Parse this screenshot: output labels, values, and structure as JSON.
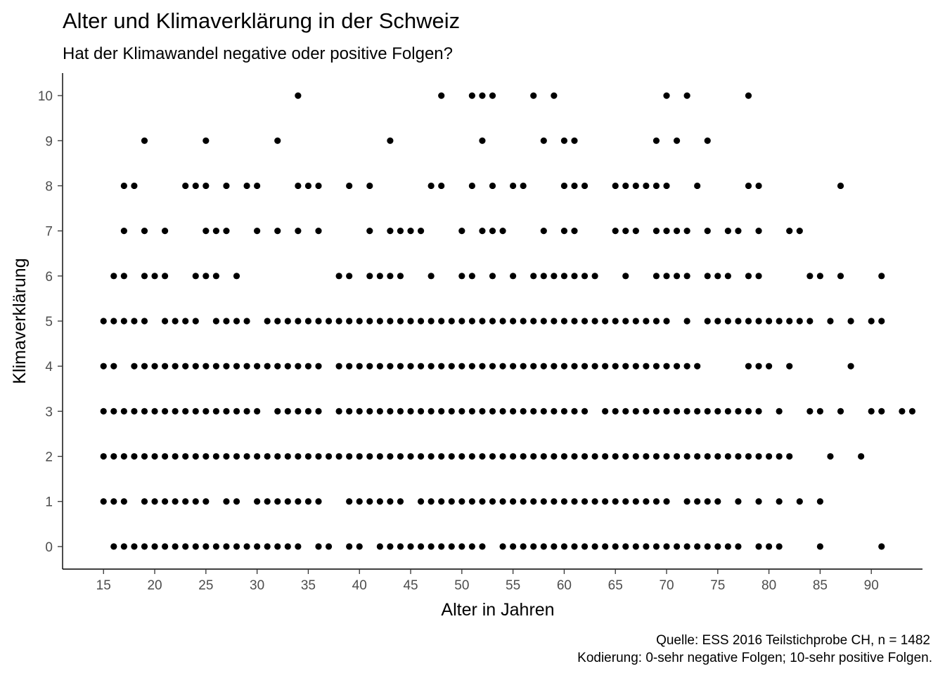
{
  "chart_data": {
    "type": "scatter",
    "title": "Alter und Klimaverklärung in der Schweiz",
    "subtitle": "Hat der Klimawandel negative oder positive Folgen?",
    "xlabel": "Alter in Jahren",
    "ylabel": "Klimaverklärung",
    "caption_lines": [
      "Quelle: ESS 2016 Teilstichprobe CH, n = 1482",
      "Kodierung: 0-sehr negative Folgen; 10-sehr positive Folgen."
    ],
    "xlim": [
      11,
      95
    ],
    "ylim": [
      -0.5,
      10.5
    ],
    "x_ticks": [
      15,
      20,
      25,
      30,
      35,
      40,
      45,
      50,
      55,
      60,
      65,
      70,
      75,
      80,
      85,
      90
    ],
    "y_ticks": [
      0,
      1,
      2,
      3,
      4,
      5,
      6,
      7,
      8,
      9,
      10
    ],
    "grid": false,
    "point_color": "#000000",
    "rows": [
      {
        "y": 10,
        "x": [
          34,
          48,
          51,
          52,
          53,
          57,
          59,
          70,
          72,
          78
        ]
      },
      {
        "y": 9,
        "x": [
          19,
          25,
          32,
          43,
          52,
          58,
          60,
          61,
          69,
          71,
          74
        ]
      },
      {
        "y": 8,
        "x": [
          17,
          18,
          23,
          24,
          25,
          27,
          29,
          30,
          34,
          35,
          36,
          39,
          41,
          47,
          48,
          51,
          53,
          55,
          56,
          60,
          61,
          62,
          65,
          66,
          67,
          68,
          69,
          70,
          73,
          78,
          79,
          87
        ]
      },
      {
        "y": 7,
        "x": [
          17,
          19,
          21,
          25,
          26,
          27,
          30,
          32,
          34,
          36,
          41,
          43,
          44,
          45,
          46,
          50,
          52,
          53,
          54,
          58,
          60,
          61,
          65,
          66,
          67,
          69,
          70,
          71,
          72,
          74,
          76,
          77,
          79,
          82,
          83
        ]
      },
      {
        "y": 6,
        "x": [
          16,
          17,
          19,
          20,
          21,
          24,
          25,
          26,
          28,
          38,
          39,
          41,
          42,
          43,
          44,
          47,
          50,
          51,
          53,
          55,
          57,
          58,
          59,
          60,
          61,
          62,
          63,
          66,
          69,
          70,
          71,
          72,
          74,
          75,
          76,
          78,
          79,
          84,
          85,
          87,
          91
        ]
      },
      {
        "y": 5,
        "x": [
          15,
          16,
          17,
          18,
          19,
          21,
          22,
          23,
          24,
          26,
          27,
          28,
          29,
          31,
          32,
          33,
          34,
          35,
          36,
          37,
          38,
          39,
          40,
          41,
          42,
          43,
          44,
          45,
          46,
          47,
          48,
          49,
          50,
          51,
          52,
          53,
          54,
          55,
          56,
          57,
          58,
          59,
          60,
          61,
          62,
          63,
          64,
          65,
          66,
          67,
          68,
          69,
          70,
          72,
          74,
          75,
          76,
          77,
          78,
          79,
          80,
          81,
          82,
          83,
          84,
          86,
          88,
          90,
          91
        ]
      },
      {
        "y": 4,
        "x": [
          15,
          16,
          18,
          19,
          20,
          21,
          22,
          23,
          24,
          25,
          26,
          27,
          28,
          29,
          30,
          31,
          32,
          33,
          34,
          35,
          36,
          38,
          39,
          40,
          41,
          42,
          43,
          44,
          45,
          46,
          47,
          48,
          49,
          50,
          51,
          52,
          53,
          54,
          55,
          56,
          57,
          58,
          59,
          60,
          61,
          62,
          63,
          64,
          65,
          66,
          67,
          68,
          69,
          70,
          71,
          72,
          73,
          78,
          79,
          80,
          82,
          88
        ]
      },
      {
        "y": 3,
        "x": [
          15,
          16,
          17,
          18,
          19,
          20,
          21,
          22,
          23,
          24,
          25,
          26,
          27,
          28,
          29,
          30,
          32,
          33,
          34,
          35,
          36,
          38,
          39,
          40,
          41,
          42,
          43,
          44,
          45,
          46,
          47,
          48,
          49,
          50,
          51,
          52,
          53,
          54,
          55,
          56,
          57,
          58,
          59,
          60,
          61,
          62,
          64,
          65,
          66,
          67,
          68,
          69,
          70,
          71,
          72,
          73,
          74,
          75,
          76,
          77,
          78,
          79,
          81,
          84,
          85,
          87,
          90,
          91,
          93,
          94
        ]
      },
      {
        "y": 2,
        "x": [
          15,
          16,
          17,
          18,
          19,
          20,
          21,
          22,
          23,
          24,
          25,
          26,
          27,
          28,
          29,
          30,
          31,
          32,
          33,
          34,
          35,
          36,
          37,
          38,
          39,
          40,
          41,
          42,
          43,
          44,
          45,
          46,
          47,
          48,
          49,
          50,
          51,
          52,
          53,
          54,
          55,
          56,
          57,
          58,
          59,
          60,
          61,
          62,
          63,
          64,
          65,
          66,
          67,
          68,
          69,
          70,
          71,
          72,
          73,
          74,
          75,
          76,
          77,
          78,
          79,
          80,
          81,
          82,
          86,
          89
        ]
      },
      {
        "y": 1,
        "x": [
          15,
          16,
          17,
          19,
          20,
          21,
          22,
          23,
          24,
          25,
          27,
          28,
          30,
          31,
          32,
          33,
          34,
          35,
          36,
          39,
          40,
          41,
          42,
          43,
          44,
          46,
          47,
          48,
          49,
          50,
          51,
          52,
          53,
          54,
          55,
          56,
          57,
          58,
          59,
          60,
          61,
          62,
          63,
          64,
          65,
          66,
          67,
          68,
          69,
          70,
          72,
          73,
          74,
          75,
          77,
          79,
          81,
          83,
          85
        ]
      },
      {
        "y": 0,
        "x": [
          16,
          17,
          18,
          19,
          20,
          21,
          22,
          23,
          24,
          25,
          26,
          27,
          28,
          29,
          30,
          31,
          32,
          33,
          34,
          36,
          37,
          39,
          40,
          42,
          43,
          44,
          45,
          46,
          47,
          48,
          49,
          50,
          51,
          52,
          54,
          55,
          56,
          57,
          58,
          59,
          60,
          61,
          62,
          63,
          64,
          65,
          66,
          67,
          68,
          69,
          70,
          71,
          72,
          73,
          74,
          75,
          76,
          77,
          79,
          80,
          81,
          85,
          91
        ]
      }
    ]
  }
}
